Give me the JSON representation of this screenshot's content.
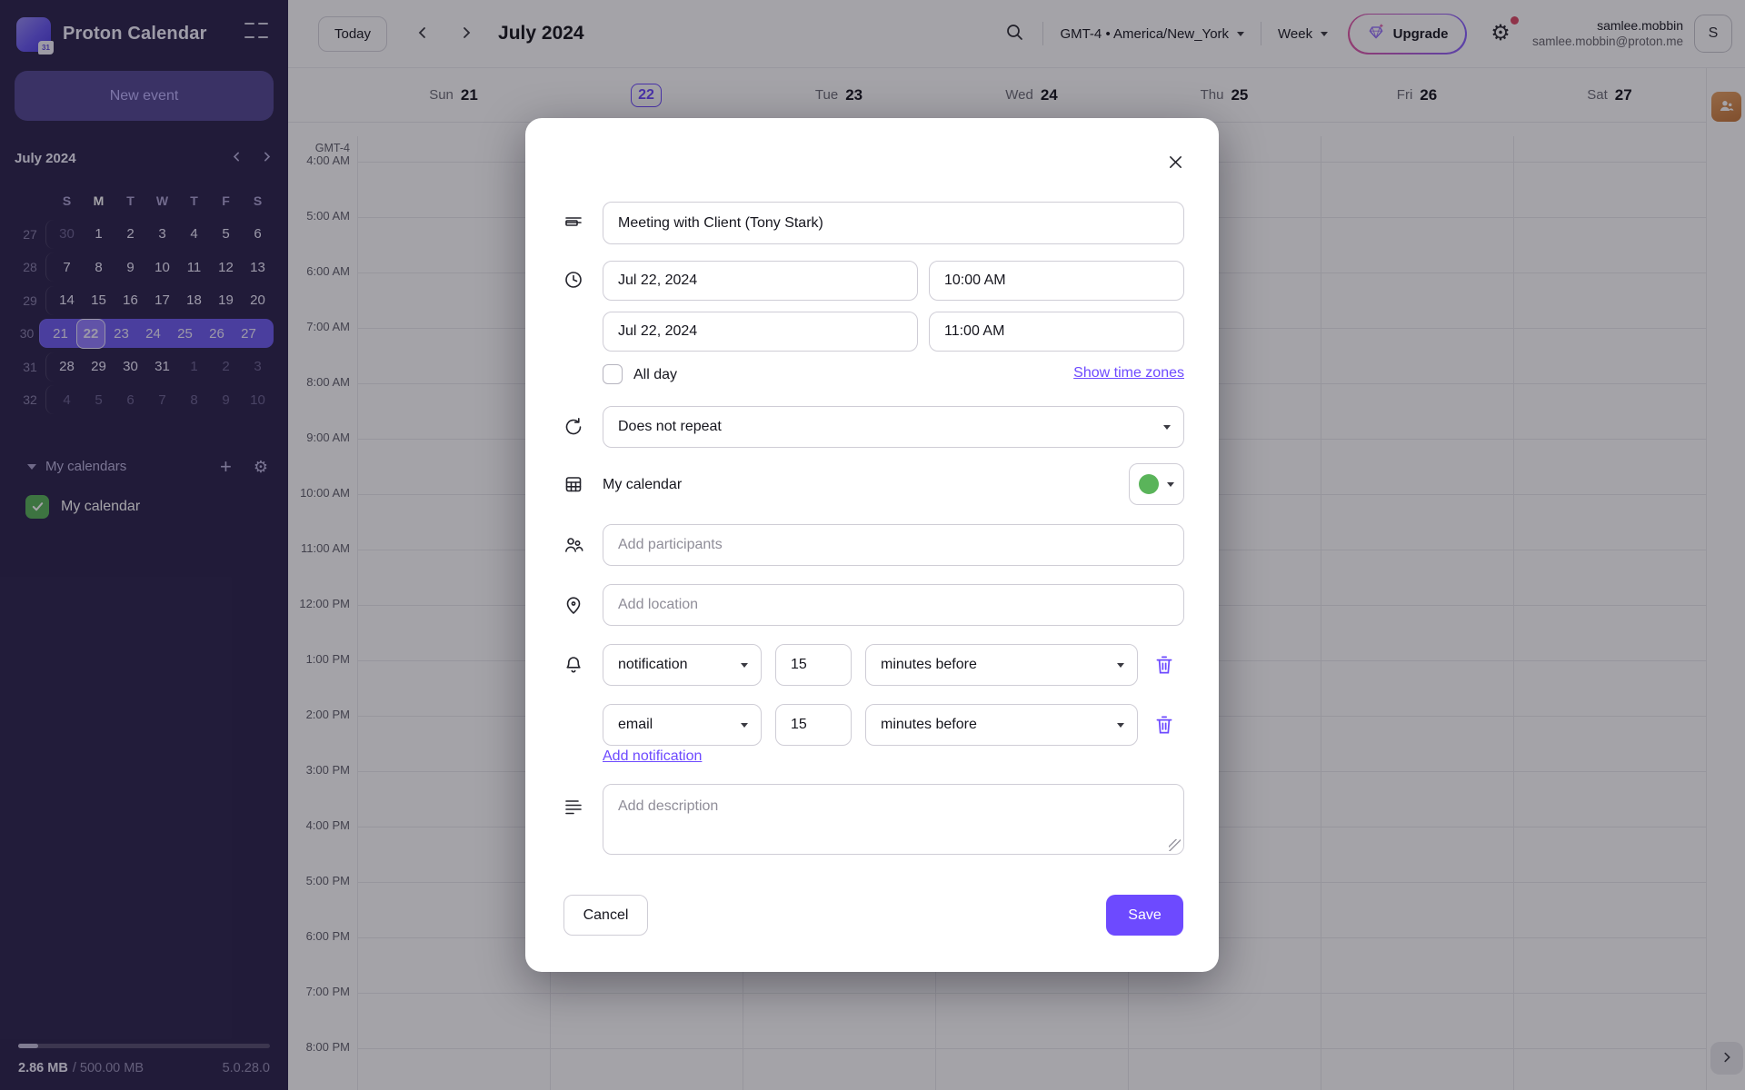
{
  "app": {
    "name": "Proton Calendar",
    "logo_day": "31"
  },
  "header": {
    "today_label": "Today",
    "title": "July 2024",
    "timezone_label": "GMT-4 • America/New_York",
    "view_label": "Week",
    "upgrade_label": "Upgrade",
    "user": {
      "name": "samlee.mobbin",
      "email": "samlee.mobbin@proton.me",
      "initial": "S"
    }
  },
  "sidebar": {
    "new_event_label": "New event",
    "mini_calendar": {
      "title": "July 2024",
      "day_headers": [
        "S",
        "M",
        "T",
        "W",
        "T",
        "F",
        "S"
      ],
      "emphasized_header_index": 1,
      "weeks": [
        {
          "num": 27,
          "days": [
            {
              "d": 30,
              "muted": true
            },
            {
              "d": 1
            },
            {
              "d": 2
            },
            {
              "d": 3
            },
            {
              "d": 4
            },
            {
              "d": 5
            },
            {
              "d": 6
            }
          ]
        },
        {
          "num": 28,
          "days": [
            {
              "d": 7
            },
            {
              "d": 8
            },
            {
              "d": 9
            },
            {
              "d": 10
            },
            {
              "d": 11
            },
            {
              "d": 12
            },
            {
              "d": 13
            }
          ]
        },
        {
          "num": 29,
          "days": [
            {
              "d": 14
            },
            {
              "d": 15
            },
            {
              "d": 16
            },
            {
              "d": 17
            },
            {
              "d": 18
            },
            {
              "d": 19
            },
            {
              "d": 20
            }
          ]
        },
        {
          "num": 30,
          "highlight": true,
          "days": [
            {
              "d": 21
            },
            {
              "d": 22,
              "selected": true
            },
            {
              "d": 23
            },
            {
              "d": 24
            },
            {
              "d": 25
            },
            {
              "d": 26
            },
            {
              "d": 27
            }
          ]
        },
        {
          "num": 31,
          "days": [
            {
              "d": 28
            },
            {
              "d": 29
            },
            {
              "d": 30
            },
            {
              "d": 31
            },
            {
              "d": 1,
              "muted": true
            },
            {
              "d": 2,
              "muted": true
            },
            {
              "d": 3,
              "muted": true
            }
          ]
        },
        {
          "num": 32,
          "days": [
            {
              "d": 4,
              "muted": true
            },
            {
              "d": 5,
              "muted": true
            },
            {
              "d": 6,
              "muted": true
            },
            {
              "d": 7,
              "muted": true
            },
            {
              "d": 8,
              "muted": true
            },
            {
              "d": 9,
              "muted": true
            },
            {
              "d": 10,
              "muted": true
            }
          ]
        }
      ]
    },
    "my_calendars_label": "My calendars",
    "calendars": [
      {
        "name": "My calendar",
        "color": "#5ab45a",
        "checked": true
      }
    ],
    "storage": {
      "used": "2.86 MB",
      "separator": "/",
      "total": "500.00 MB"
    },
    "version": "5.0.28.0"
  },
  "week_view": {
    "gmt_label": "GMT-4",
    "days": [
      {
        "name": "Sun",
        "num": "21"
      },
      {
        "name": "Mon",
        "num": "22",
        "selected": true
      },
      {
        "name": "Tue",
        "num": "23"
      },
      {
        "name": "Wed",
        "num": "24"
      },
      {
        "name": "Thu",
        "num": "25"
      },
      {
        "name": "Fri",
        "num": "26"
      },
      {
        "name": "Sat",
        "num": "27"
      }
    ],
    "hours": [
      "4:00 AM",
      "5:00 AM",
      "6:00 AM",
      "7:00 AM",
      "8:00 AM",
      "9:00 AM",
      "10:00 AM",
      "11:00 AM",
      "12:00 PM",
      "1:00 PM",
      "2:00 PM",
      "3:00 PM",
      "4:00 PM",
      "5:00 PM",
      "6:00 PM",
      "7:00 PM",
      "8:00 PM"
    ]
  },
  "modal": {
    "title_value": "Meeting with Client (Tony Stark)",
    "start_date": "Jul 22, 2024",
    "start_time": "10:00 AM",
    "end_date": "Jul 22, 2024",
    "end_time": "11:00 AM",
    "all_day_label": "All day",
    "show_time_zones_label": "Show time zones",
    "repeat_value": "Does not repeat",
    "calendar_label": "My calendar",
    "calendar_color": "#5ab45a",
    "participants_placeholder": "Add participants",
    "location_placeholder": "Add location",
    "notifications": [
      {
        "type": "notification",
        "value": "15",
        "unit": "minutes before"
      },
      {
        "type": "email",
        "value": "15",
        "unit": "minutes before"
      }
    ],
    "add_notification_label": "Add notification",
    "description_placeholder": "Add description",
    "cancel_label": "Cancel",
    "save_label": "Save"
  },
  "colors": {
    "accent": "#6D4AFF",
    "sidebar_bg": "#2d254d",
    "calendar_green": "#5ab45a",
    "upgrade_gradient_start": "#e259a6",
    "upgrade_gradient_end": "#8a63ff",
    "notification_dot": "#dd4b67",
    "contacts_orange": "#d98a4f"
  }
}
